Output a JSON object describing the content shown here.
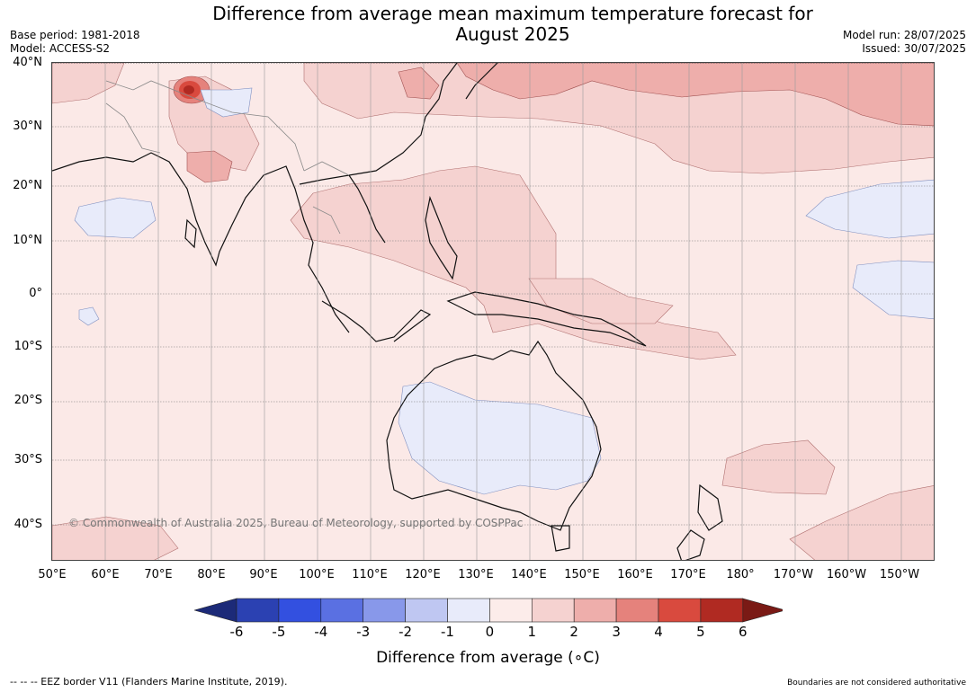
{
  "header": {
    "title_line1": "Difference from average mean maximum temperature forecast for",
    "title_line2": "August 2025",
    "base_period": "Base period: 1981-2018",
    "model": "Model: ACCESS-S2",
    "model_run": "Model run: 28/07/2025",
    "issued": "Issued: 30/07/2025"
  },
  "map": {
    "copyright": "© Commonwealth of Australia 2025, Bureau of Meteorology, supported by COSPPac",
    "lat_labels": [
      "40°N",
      "30°N",
      "20°N",
      "10°N",
      "0°",
      "10°S",
      "20°S",
      "30°S",
      "40°S"
    ],
    "lon_labels": [
      "50°E",
      "60°E",
      "70°E",
      "80°E",
      "90°E",
      "100°E",
      "110°E",
      "120°E",
      "130°E",
      "140°E",
      "150°E",
      "160°E",
      "170°E",
      "180°",
      "170°W",
      "160°W",
      "150°W"
    ],
    "background_anomaly_class": "0 to 1"
  },
  "colorbar": {
    "ticks": [
      "-6",
      "-5",
      "-4",
      "-3",
      "-2",
      "-1",
      "0",
      "1",
      "2",
      "3",
      "4",
      "5",
      "6"
    ],
    "colors": [
      "#1c2a78",
      "#2b41b2",
      "#3350e0",
      "#5a70e2",
      "#8898ea",
      "#bfc7f2",
      "#e8ebfa",
      "#fcecea",
      "#f5d2d0",
      "#eeaeab",
      "#e5827c",
      "#d94a3e",
      "#b02a22",
      "#7a1a15"
    ],
    "label": "Difference from average (∘C)"
  },
  "footer": {
    "eez": "--  --  -- EEZ border V11 (Flanders Marine Institute, 2019).",
    "disclaimer": "Boundaries are not considered authoritative"
  }
}
